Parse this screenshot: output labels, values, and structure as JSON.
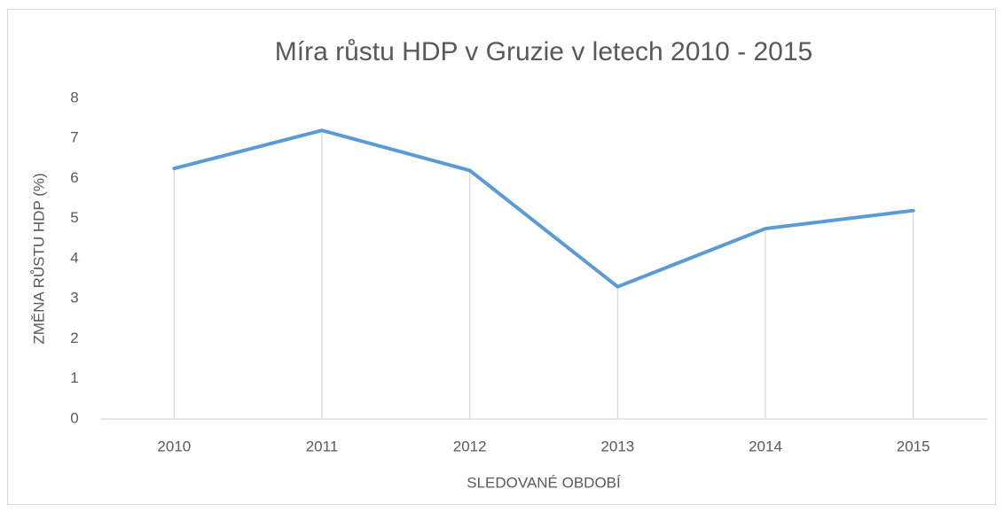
{
  "chart_data": {
    "type": "line",
    "title": "Míra růstu HDP v Gruzie v letech 2010 - 2015",
    "x_label": "SLEDOVANÉ OBDOBÍ",
    "y_label": "ZMĚNA RŮSTU HDP (%)",
    "categories": [
      "2010",
      "2011",
      "2012",
      "2013",
      "2014",
      "2015"
    ],
    "values": [
      6.25,
      7.2,
      6.2,
      3.3,
      4.75,
      5.2
    ],
    "color": "#5b9bd5",
    "ylim": [
      0,
      8
    ],
    "yticks": [
      0,
      1,
      2,
      3,
      4,
      5,
      6,
      7,
      8
    ],
    "grid": false,
    "drop_lines": true
  }
}
